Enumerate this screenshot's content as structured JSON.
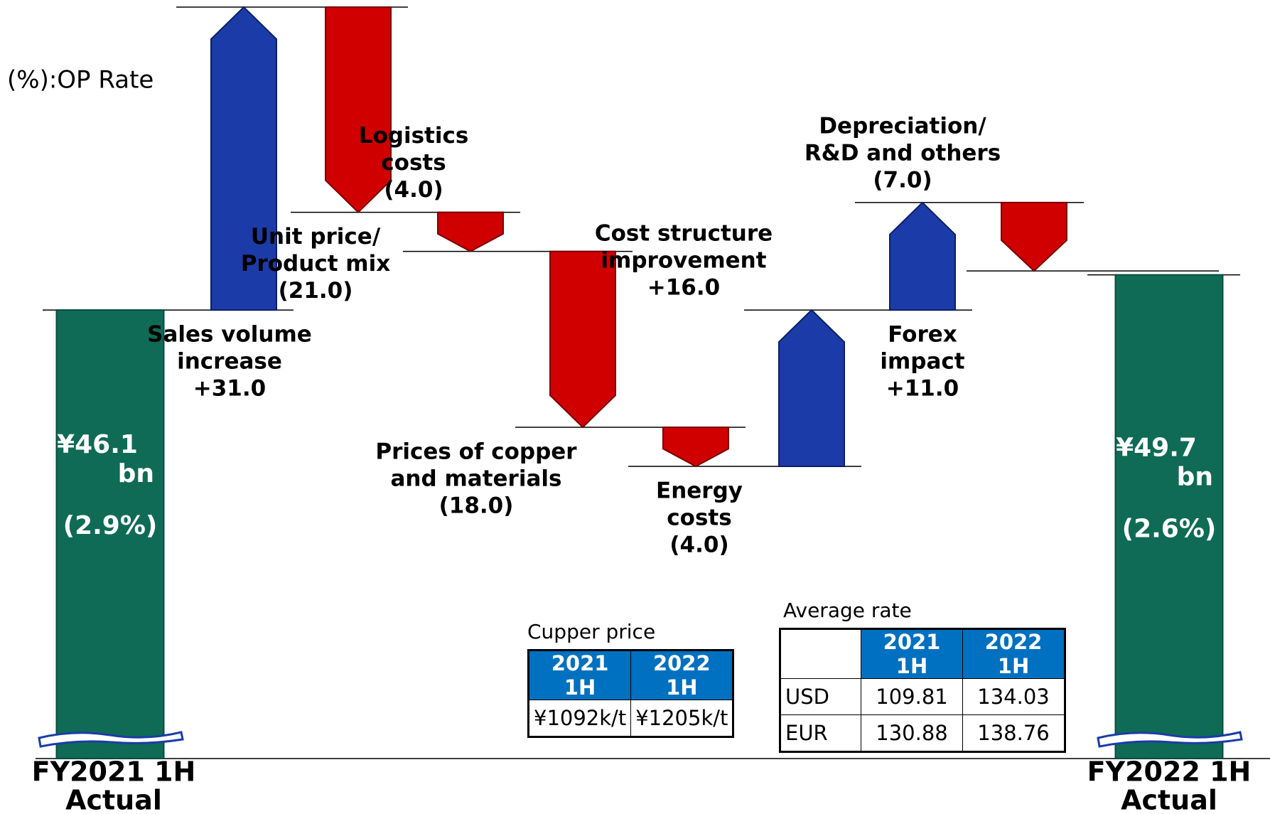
{
  "chart_data": {
    "type": "waterfall",
    "note": "(%):OP Rate",
    "categories": [
      [
        "FY2021 1H",
        "Actual"
      ],
      [
        "Sales volume",
        "increase"
      ],
      [
        "Unit price/",
        "Product mix"
      ],
      [
        "Logistics",
        "costs"
      ],
      [
        "Prices of copper",
        "and materials"
      ],
      [
        "Energy",
        "costs"
      ],
      [
        "Cost structure",
        "improvement"
      ],
      [
        "Forex",
        "impact"
      ],
      [
        "Depreciation/",
        "R&D and others"
      ],
      [
        "FY2022 1H",
        "Actual"
      ]
    ],
    "values": [
      46.1,
      31.0,
      -21.0,
      -4.0,
      -18.0,
      -4.0,
      16.0,
      11.0,
      -7.0,
      49.7
    ],
    "value_labels": [
      [
        "¥46.1",
        "bn",
        "(2.9%)"
      ],
      [
        "+31.0"
      ],
      [
        "(21.0)"
      ],
      [
        "(4.0)"
      ],
      [
        "(18.0)"
      ],
      [
        "(4.0)"
      ],
      [
        "+16.0"
      ],
      [
        "+11.0"
      ],
      [
        "(7.0)"
      ],
      [
        "¥49.7",
        "bn",
        "(2.6%)"
      ]
    ],
    "colors": {
      "total": "#0f6b56",
      "increase": "#1b3ca8",
      "decrease": "#d10000"
    }
  },
  "tables": [
    {
      "title": "Cupper price",
      "header": [
        "2021 1H",
        "2022 1H"
      ],
      "rows": [
        [
          "¥1092k/t",
          "¥1205k/t"
        ]
      ]
    },
    {
      "title": "Average rate",
      "header": [
        "2021 1H",
        "2022 1H"
      ],
      "rows": [
        [
          "USD",
          "109.81",
          "134.03"
        ],
        [
          "EUR",
          "130.88",
          "138.76"
        ]
      ]
    }
  ]
}
